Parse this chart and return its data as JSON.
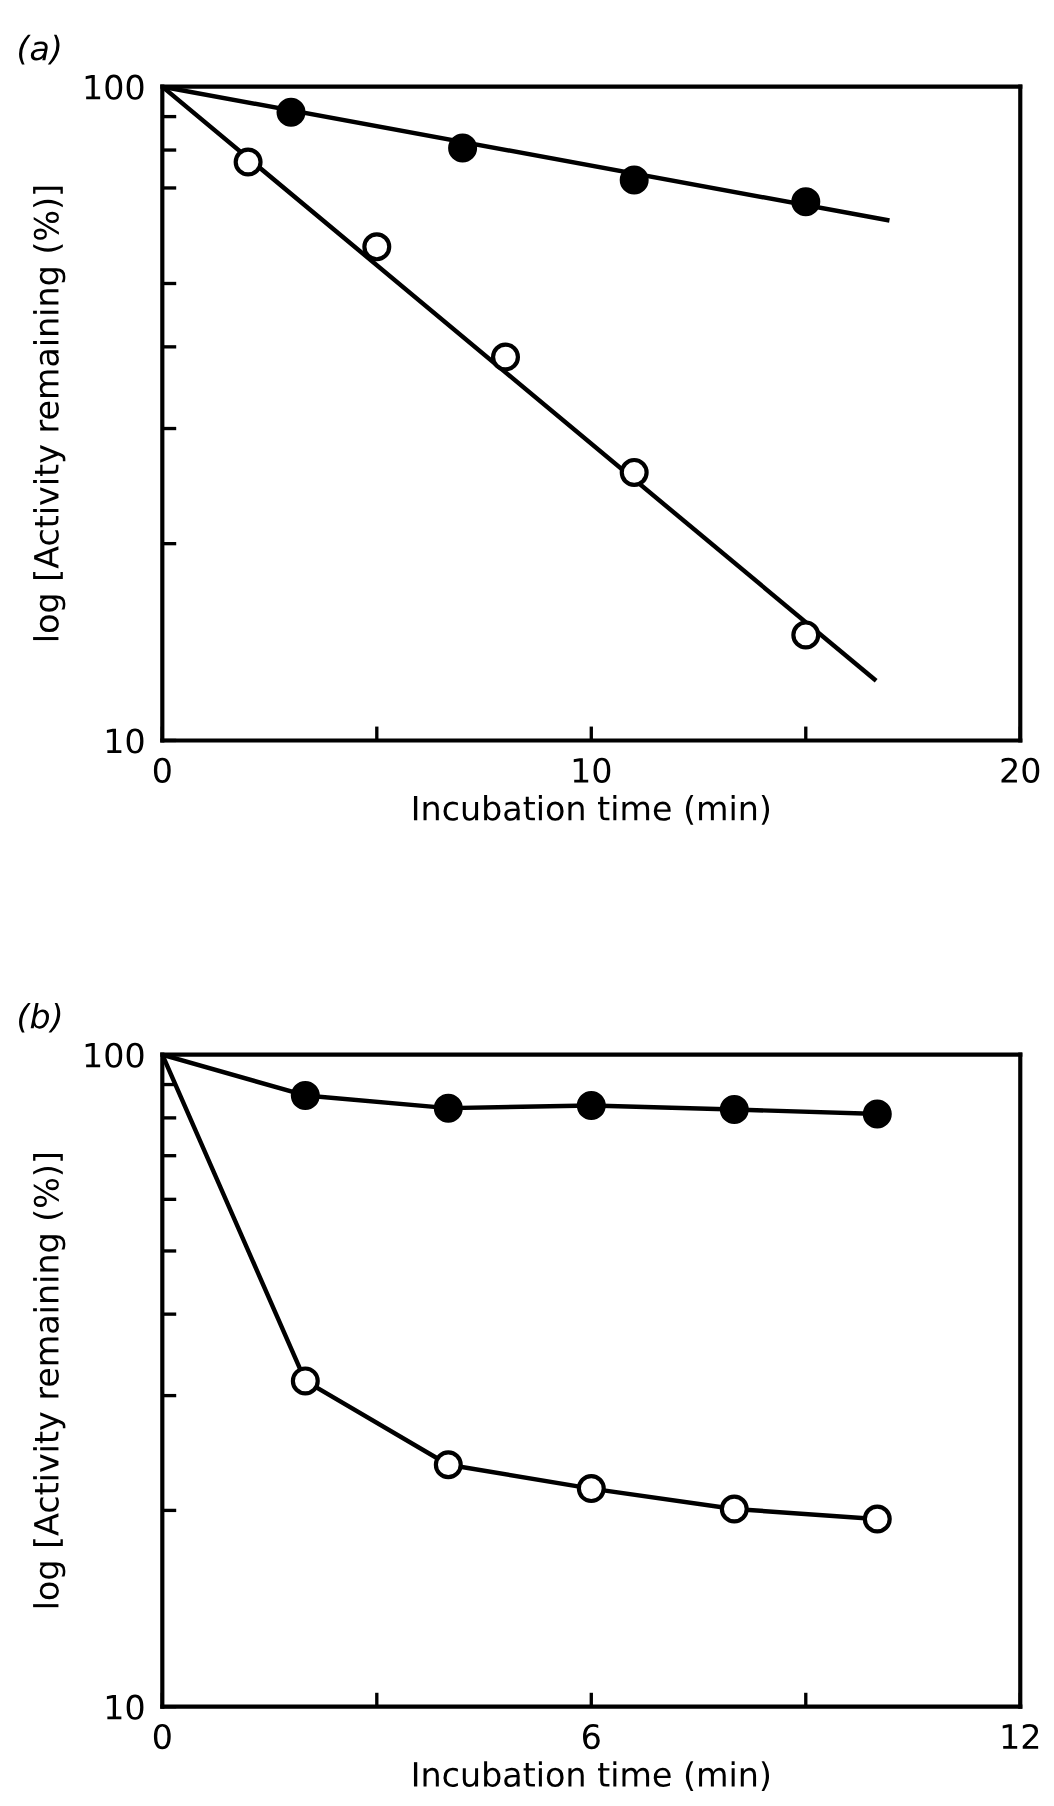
{
  "chart_data": [
    {
      "type": "scatter",
      "title": "(a)",
      "xlabel": "Incubation time (min)",
      "ylabel": "log [Activity remaining (%)]",
      "log": "y",
      "xlim": [
        0,
        20
      ],
      "ylim": [
        10,
        100
      ],
      "xticks": [
        0,
        {
          "value": 5,
          "label": null
        },
        10,
        {
          "value": 15,
          "label": null
        },
        20
      ],
      "yticks": [
        10,
        {
          "value": 20,
          "label": null
        },
        {
          "value": 30,
          "label": null
        },
        {
          "value": 40,
          "label": null
        },
        {
          "value": 50,
          "label": null
        },
        {
          "value": 70,
          "label": null
        },
        {
          "value": 80,
          "label": null
        },
        {
          "value": 90,
          "label": null
        },
        100
      ],
      "grid": false,
      "series": [
        {
          "color": "#000000",
          "marker": "circle",
          "x": [
            3,
            7,
            11,
            15
          ],
          "values": [
            91.4,
            80.6,
            72,
            66.7
          ]
        },
        {
          "color": "#ffffff",
          "marker": "circle",
          "x": [
            2,
            5,
            8,
            11,
            15
          ],
          "values": [
            76.7,
            56.9,
            38.6,
            25.7,
            14.5
          ]
        },
        {
          "type": "line",
          "color": "#000000",
          "marker": "none",
          "x": [
            0,
            16.9
          ],
          "values": [
            100,
            62.5
          ]
        },
        {
          "type": "line",
          "color": "#000000",
          "marker": "none",
          "x": [
            0,
            16.6
          ],
          "values": [
            100,
            12.4
          ]
        }
      ]
    },
    {
      "type": "line",
      "title": "(b)",
      "xlabel": "Incubation time (min)",
      "ylabel": "log [Activity remaining (%)]",
      "log": "y",
      "xlim": [
        0,
        12
      ],
      "ylim": [
        10,
        100
      ],
      "xticks": [
        0,
        {
          "value": 3,
          "label": null
        },
        6,
        {
          "value": 9,
          "label": null
        },
        12
      ],
      "yticks": [
        10,
        {
          "value": 20,
          "label": null
        },
        {
          "value": 30,
          "label": null
        },
        {
          "value": 40,
          "label": null
        },
        {
          "value": 50,
          "label": null
        },
        {
          "value": 60,
          "label": null
        },
        {
          "value": 70,
          "label": null
        },
        {
          "value": 80,
          "label": null
        },
        {
          "value": 90,
          "label": null
        },
        100
      ],
      "grid": false,
      "series": [
        {
          "color": "#000000",
          "marker": "none",
          "x": [
            0,
            2,
            4,
            6,
            8,
            10
          ],
          "values": [
            100,
            86.6,
            82.8,
            83.6,
            82.4,
            81.1
          ]
        },
        {
          "color": "#000000",
          "marker": "none",
          "x": [
            0,
            2,
            4,
            6,
            8,
            10
          ],
          "values": [
            100,
            31.6,
            23.5,
            21.6,
            20.1,
            19.4
          ]
        },
        {
          "type": "scatter",
          "color": "#000000",
          "marker": "circle",
          "x": [
            2,
            4,
            6,
            8,
            10
          ],
          "values": [
            86.6,
            82.8,
            83.6,
            82.4,
            81.1
          ]
        },
        {
          "type": "scatter",
          "color": "#ffffff",
          "marker": "circle",
          "x": [
            2,
            4,
            6,
            8,
            10
          ],
          "values": [
            31.6,
            23.5,
            21.6,
            20.1,
            19.4
          ]
        }
      ]
    }
  ]
}
